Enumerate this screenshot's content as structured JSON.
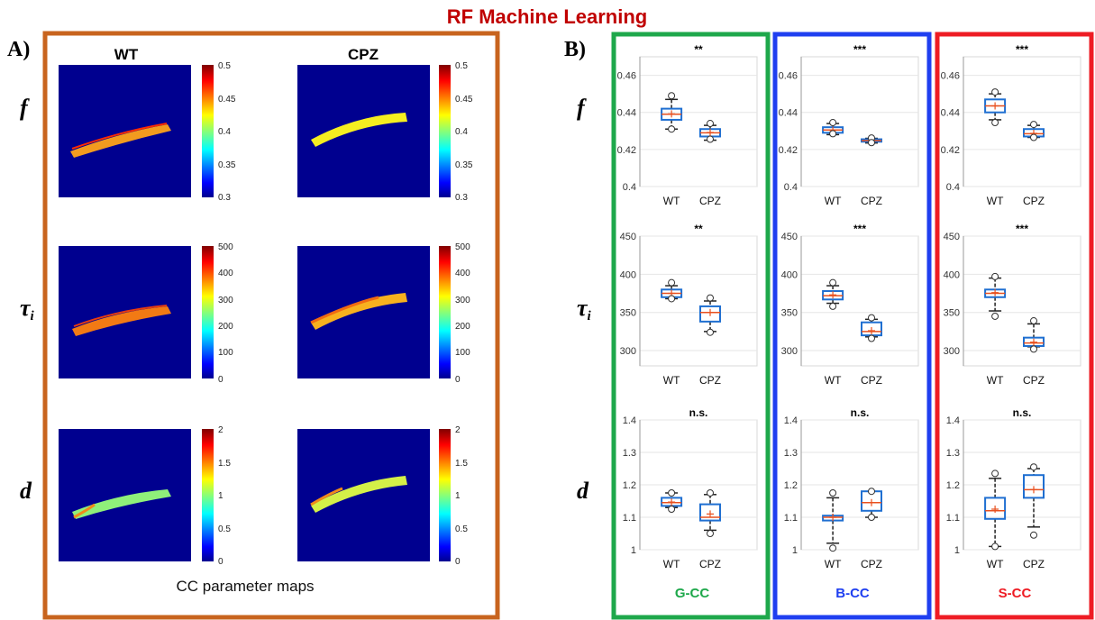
{
  "title": "RF Machine Learning",
  "panel_a": {
    "letter": "A)",
    "columns": [
      "WT",
      "CPZ"
    ],
    "rows": [
      {
        "symbol": "f",
        "subscript": "",
        "colorbar_ticks": [
          "0.5",
          "0.45",
          "0.4",
          "0.35",
          "0.3"
        ]
      },
      {
        "symbol": "τ",
        "subscript": "i",
        "colorbar_ticks": [
          "500",
          "400",
          "300",
          "200",
          "100",
          "0"
        ]
      },
      {
        "symbol": "d",
        "subscript": "",
        "colorbar_ticks": [
          "2",
          "1.5",
          "1",
          "0.5",
          "0"
        ]
      }
    ],
    "caption": "CC parameter maps",
    "frame_color": "#c8641e"
  },
  "panel_b": {
    "letter": "B)",
    "row_labels": [
      {
        "symbol": "f",
        "subscript": ""
      },
      {
        "symbol": "τ",
        "subscript": "i"
      },
      {
        "symbol": "d",
        "subscript": ""
      }
    ],
    "regions": [
      {
        "name": "G-CC",
        "color": "#1ea84b"
      },
      {
        "name": "B-CC",
        "color": "#1f3ff0"
      },
      {
        "name": "S-CC",
        "color": "#ee1c24"
      }
    ]
  },
  "chart_data": [
    {
      "type": "box",
      "region": "G-CC",
      "parameter": "f",
      "categories": [
        "WT",
        "CPZ"
      ],
      "ylim": [
        0.4,
        0.47
      ],
      "yticks": [
        "0.4",
        "0.42",
        "0.44",
        "0.46"
      ],
      "significance": "**",
      "boxes": [
        {
          "whislo": 0.431,
          "q1": 0.436,
          "med": 0.439,
          "mean": 0.4392,
          "q3": 0.442,
          "whishi": 0.447,
          "fliers": [
            0.449,
            0.431
          ]
        },
        {
          "whislo": 0.425,
          "q1": 0.427,
          "med": 0.429,
          "mean": 0.4292,
          "q3": 0.431,
          "whishi": 0.433,
          "fliers": [
            0.434,
            0.4255
          ]
        }
      ]
    },
    {
      "type": "box",
      "region": "B-CC",
      "parameter": "f",
      "categories": [
        "WT",
        "CPZ"
      ],
      "ylim": [
        0.4,
        0.47
      ],
      "yticks": [
        "0.4",
        "0.42",
        "0.44",
        "0.46"
      ],
      "significance": "***",
      "boxes": [
        {
          "whislo": 0.428,
          "q1": 0.429,
          "med": 0.4305,
          "mean": 0.4303,
          "q3": 0.432,
          "whishi": 0.434,
          "fliers": [
            0.4345,
            0.4285
          ]
        },
        {
          "whislo": 0.4235,
          "q1": 0.4242,
          "med": 0.4248,
          "mean": 0.4248,
          "q3": 0.4255,
          "whishi": 0.426,
          "fliers": [
            0.4262,
            0.4237
          ]
        }
      ]
    },
    {
      "type": "box",
      "region": "S-CC",
      "parameter": "f",
      "categories": [
        "WT",
        "CPZ"
      ],
      "ylim": [
        0.4,
        0.47
      ],
      "yticks": [
        "0.4",
        "0.42",
        "0.44",
        "0.46"
      ],
      "significance": "***",
      "boxes": [
        {
          "whislo": 0.436,
          "q1": 0.44,
          "med": 0.4435,
          "mean": 0.4435,
          "q3": 0.447,
          "whishi": 0.45,
          "fliers": [
            0.451,
            0.4345
          ]
        },
        {
          "whislo": 0.4265,
          "q1": 0.427,
          "med": 0.4285,
          "mean": 0.4287,
          "q3": 0.431,
          "whishi": 0.433,
          "fliers": [
            0.4335,
            0.4265
          ]
        }
      ]
    },
    {
      "type": "box",
      "region": "G-CC",
      "parameter": "τi",
      "categories": [
        "WT",
        "CPZ"
      ],
      "ylim": [
        280,
        450
      ],
      "yticks": [
        "300",
        "350",
        "400",
        "450"
      ],
      "significance": "**",
      "boxes": [
        {
          "whislo": 368,
          "q1": 370,
          "med": 375,
          "mean": 375,
          "q3": 380,
          "whishi": 385,
          "fliers": [
            389,
            368
          ]
        },
        {
          "whislo": 325,
          "q1": 338,
          "med": 350,
          "mean": 350,
          "q3": 358,
          "whishi": 365,
          "fliers": [
            369,
            324
          ]
        }
      ]
    },
    {
      "type": "box",
      "region": "B-CC",
      "parameter": "τi",
      "categories": [
        "WT",
        "CPZ"
      ],
      "ylim": [
        280,
        450
      ],
      "yticks": [
        "300",
        "350",
        "400",
        "450"
      ],
      "significance": "***",
      "boxes": [
        {
          "whislo": 362,
          "q1": 367,
          "med": 372,
          "mean": 373,
          "q3": 378,
          "whishi": 385,
          "fliers": [
            389,
            358
          ]
        },
        {
          "whislo": 318,
          "q1": 320,
          "med": 325,
          "mean": 326,
          "q3": 337,
          "whishi": 341,
          "fliers": [
            343,
            316
          ]
        }
      ]
    },
    {
      "type": "box",
      "region": "S-CC",
      "parameter": "τi",
      "categories": [
        "WT",
        "CPZ"
      ],
      "ylim": [
        280,
        450
      ],
      "yticks": [
        "300",
        "350",
        "400",
        "450"
      ],
      "significance": "***",
      "boxes": [
        {
          "whislo": 352,
          "q1": 370,
          "med": 375,
          "mean": 376,
          "q3": 380,
          "whishi": 395,
          "fliers": [
            397,
            345
          ]
        },
        {
          "whislo": 305,
          "q1": 306,
          "med": 310,
          "mean": 311,
          "q3": 317,
          "whishi": 335,
          "fliers": [
            339,
            302
          ]
        }
      ]
    },
    {
      "type": "box",
      "region": "G-CC",
      "parameter": "d",
      "categories": [
        "WT",
        "CPZ"
      ],
      "ylim": [
        1,
        1.4
      ],
      "yticks": [
        "1",
        "1.1",
        "1.2",
        "1.3",
        "1.4"
      ],
      "significance": "n.s.",
      "boxes": [
        {
          "whislo": 1.13,
          "q1": 1.135,
          "med": 1.145,
          "mean": 1.147,
          "q3": 1.16,
          "whishi": 1.175,
          "fliers": [
            1.175,
            1.125
          ]
        },
        {
          "whislo": 1.06,
          "q1": 1.09,
          "med": 1.1,
          "mean": 1.11,
          "q3": 1.14,
          "whishi": 1.17,
          "fliers": [
            1.175,
            1.05
          ]
        }
      ]
    },
    {
      "type": "box",
      "region": "B-CC",
      "parameter": "d",
      "categories": [
        "WT",
        "CPZ"
      ],
      "ylim": [
        1,
        1.4
      ],
      "yticks": [
        "1",
        "1.1",
        "1.2",
        "1.3",
        "1.4"
      ],
      "significance": "n.s.",
      "boxes": [
        {
          "whislo": 1.02,
          "q1": 1.09,
          "med": 1.1,
          "mean": 1.1,
          "q3": 1.105,
          "whishi": 1.16,
          "fliers": [
            1.175,
            1.005
          ]
        },
        {
          "whislo": 1.1,
          "q1": 1.12,
          "med": 1.145,
          "mean": 1.145,
          "q3": 1.18,
          "whishi": 1.18,
          "fliers": [
            1.18,
            1.1
          ]
        }
      ]
    },
    {
      "type": "box",
      "region": "S-CC",
      "parameter": "d",
      "categories": [
        "WT",
        "CPZ"
      ],
      "ylim": [
        1,
        1.4
      ],
      "yticks": [
        "1",
        "1.1",
        "1.2",
        "1.3",
        "1.4"
      ],
      "significance": "n.s.",
      "boxes": [
        {
          "whislo": 1.01,
          "q1": 1.095,
          "med": 1.12,
          "mean": 1.125,
          "q3": 1.16,
          "whishi": 1.22,
          "fliers": [
            1.235,
            1.01
          ]
        },
        {
          "whislo": 1.07,
          "q1": 1.16,
          "med": 1.185,
          "mean": 1.185,
          "q3": 1.23,
          "whishi": 1.25,
          "fliers": [
            1.255,
            1.045
          ]
        }
      ]
    }
  ]
}
